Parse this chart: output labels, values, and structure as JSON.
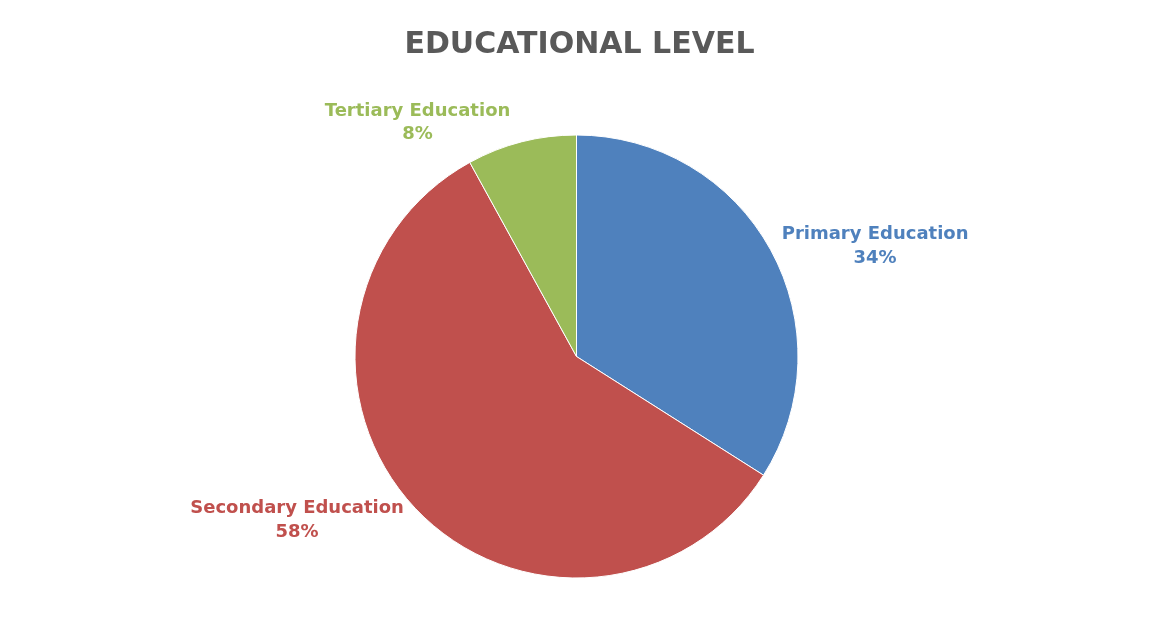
{
  "chart_data": {
    "type": "pie",
    "title": "EDUCATIONAL LEVEL",
    "categories": [
      "Primary Education",
      "Secondary Education",
      "Tertiary Education"
    ],
    "values": [
      34,
      58,
      8
    ],
    "colors": [
      "#4f81bd",
      "#c0504d",
      "#9bbb59"
    ],
    "value_labels": [
      "34%",
      "58%",
      "8%"
    ],
    "legend": false
  }
}
